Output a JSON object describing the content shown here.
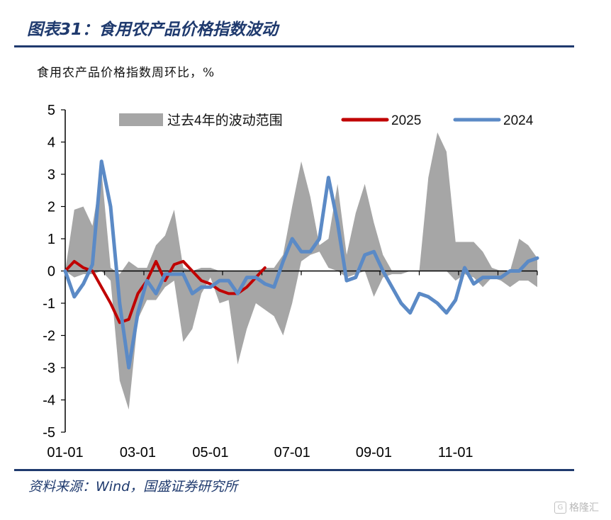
{
  "header": {
    "title": "图表31：食用农产品价格指数波动",
    "unit_label": "食用农产品价格指数周环比，%"
  },
  "footer": {
    "source": "资料来源：Wind，国盛证券研究所",
    "watermark": "格隆汇",
    "watermark_icon": "G"
  },
  "colors": {
    "band": "#a6a6a6",
    "series_2025": "#c00000",
    "series_2024": "#5b8ac6",
    "brand": "#1f3a6e"
  },
  "chart_data": {
    "type": "line",
    "x_unit": "week of year",
    "x_tick_labels": [
      "01-01",
      "03-01",
      "05-01",
      "07-01",
      "09-01",
      "11-01"
    ],
    "x_tick_weeks": [
      1,
      9,
      17,
      26,
      35,
      44
    ],
    "xlim": [
      1,
      53
    ],
    "ylim": [
      -5,
      5
    ],
    "y_ticks": [
      5,
      4,
      3,
      2,
      1,
      0,
      -1,
      -2,
      -3,
      -4,
      -5
    ],
    "grid": false,
    "legend_position": "top",
    "band": {
      "name": "过去4年的波动范围",
      "x": [
        1,
        2,
        3,
        4,
        5,
        6,
        7,
        8,
        9,
        10,
        11,
        12,
        13,
        14,
        15,
        16,
        17,
        18,
        19,
        20,
        21,
        22,
        23,
        24,
        25,
        26,
        27,
        28,
        29,
        30,
        31,
        32,
        33,
        34,
        35,
        36,
        37,
        38,
        39,
        40,
        41,
        42,
        43,
        44,
        45,
        46,
        47,
        48,
        49,
        50,
        51,
        52,
        53
      ],
      "upper": [
        0.0,
        1.9,
        2.0,
        1.4,
        3.1,
        0.1,
        -0.1,
        0.3,
        0.1,
        0.1,
        0.8,
        1.1,
        1.9,
        0.1,
        0.0,
        0.1,
        0.1,
        0.0,
        0.0,
        0.0,
        0.0,
        0.0,
        0.1,
        0.1,
        0.5,
        2.0,
        3.4,
        2.3,
        0.8,
        1.0,
        2.7,
        0.5,
        1.8,
        2.7,
        1.5,
        0.5,
        0.0,
        0.0,
        0.0,
        0.0,
        2.9,
        4.3,
        3.7,
        0.9,
        0.9,
        0.9,
        0.6,
        0.1,
        0.0,
        0.0,
        1.0,
        0.8,
        0.4
      ],
      "lower": [
        0.0,
        -0.2,
        -0.1,
        -0.1,
        0.0,
        -0.3,
        -3.4,
        -4.3,
        -1.5,
        -0.9,
        -0.9,
        -0.5,
        -0.3,
        -2.2,
        -1.8,
        -0.7,
        -0.2,
        -1.0,
        -0.9,
        -2.9,
        -1.8,
        -1.0,
        -1.2,
        -1.4,
        -2.0,
        -1.0,
        0.3,
        0.5,
        0.6,
        0.1,
        0.0,
        -0.2,
        -0.1,
        0.0,
        -0.8,
        -0.2,
        -0.1,
        -0.1,
        0.0,
        0.0,
        0.0,
        0.0,
        0.0,
        -0.3,
        -0.1,
        -0.2,
        -0.5,
        -0.2,
        -0.3,
        -0.5,
        -0.3,
        -0.3,
        -0.5
      ]
    },
    "series": [
      {
        "name": "2025",
        "x": [
          1,
          2,
          3,
          4,
          5,
          6,
          7,
          8,
          9,
          10,
          11,
          12,
          13,
          14,
          15,
          16,
          17,
          18,
          19,
          20,
          21,
          22,
          23
        ],
        "values": [
          0.0,
          0.3,
          0.1,
          0.0,
          -0.5,
          -1.0,
          -1.6,
          -1.5,
          -0.7,
          -0.3,
          0.3,
          -0.3,
          0.2,
          0.3,
          0.0,
          -0.3,
          -0.4,
          -0.6,
          -0.7,
          -0.7,
          -0.5,
          -0.2,
          0.1
        ]
      },
      {
        "name": "2024",
        "x": [
          1,
          2,
          3,
          4,
          5,
          6,
          7,
          8,
          9,
          10,
          11,
          12,
          13,
          14,
          15,
          16,
          17,
          18,
          19,
          20,
          21,
          22,
          23,
          24,
          25,
          26,
          27,
          28,
          29,
          30,
          31,
          32,
          33,
          34,
          35,
          36,
          37,
          38,
          39,
          40,
          41,
          42,
          43,
          44,
          45,
          46,
          47,
          48,
          49,
          50,
          51,
          52,
          53
        ],
        "values": [
          0.0,
          -0.8,
          -0.4,
          0.2,
          3.4,
          2.0,
          -1.0,
          -3.0,
          -1.3,
          -0.3,
          -0.7,
          -0.1,
          -0.1,
          -0.1,
          -0.7,
          -0.5,
          -0.5,
          -0.3,
          -0.3,
          -0.7,
          -0.2,
          -0.2,
          -0.4,
          -0.5,
          0.3,
          1.0,
          0.6,
          0.6,
          1.0,
          2.9,
          1.5,
          -0.3,
          -0.2,
          0.5,
          0.6,
          0.0,
          -0.5,
          -1.0,
          -1.3,
          -0.7,
          -0.8,
          -1.0,
          -1.3,
          -0.9,
          0.1,
          -0.4,
          -0.2,
          -0.2,
          -0.2,
          0.0,
          0.0,
          0.3,
          0.4
        ]
      }
    ]
  }
}
